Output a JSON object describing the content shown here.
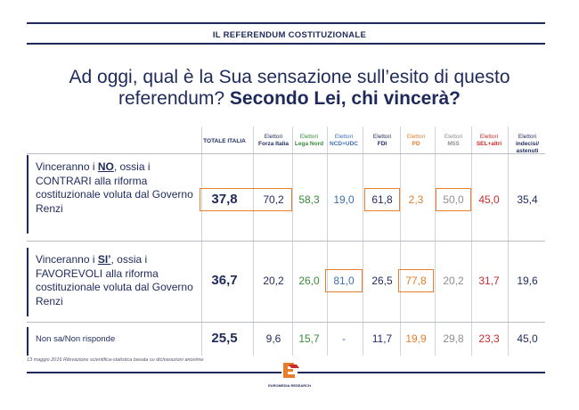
{
  "header": {
    "title": "IL REFERENDUM COSTITUZIONALE"
  },
  "question": {
    "part1": "Ad oggi, qual è la Sua sensazione sull’esito di questo",
    "part2": "referendum? ",
    "bold": "Secondo Lei, chi vincerà?"
  },
  "colors": {
    "navy": "#1f2a5c",
    "green": "#3a8a3a",
    "blue": "#3f6fb5",
    "orange": "#e67e2c",
    "gray": "#8f8f8f",
    "red": "#cc2a2a",
    "highlight_border": "#e67e2c"
  },
  "chart_data": {
    "type": "table",
    "title": "Ad oggi, qual è la Sua sensazione sull’esito di questo referendum? Secondo Lei, chi vincerà?",
    "columns": [
      {
        "l1": "TOTALE ITALIA",
        "l2": ""
      },
      {
        "l1": "Elettori",
        "l2": "Forza Italia"
      },
      {
        "l1": "Elettori",
        "l2": "Lega Nord"
      },
      {
        "l1": "Elettori",
        "l2": "NCD+UDC"
      },
      {
        "l1": "Elettori",
        "l2": "FDI"
      },
      {
        "l1": "Elettori",
        "l2": "PD"
      },
      {
        "l1": "Elettori",
        "l2": "M5S"
      },
      {
        "l1": "Elettori",
        "l2": "SEL+altri"
      },
      {
        "l1": "Elettori",
        "l2": "indecisi/ astenuti"
      }
    ],
    "rows": [
      {
        "label_pre": "Vinceranno i ",
        "label_key": "NO",
        "label_post": ", ossia i CONTRARI alla riforma costituzionale voluta dal Governo Renzi",
        "values": [
          "37,8",
          "70,2",
          "58,3",
          "19,0",
          "61,8",
          "2,3",
          "50,0",
          "45,0",
          "35,4"
        ],
        "highlighted": [
          true,
          true,
          false,
          false,
          true,
          false,
          true,
          false,
          false
        ]
      },
      {
        "label_pre": "Vinceranno i ",
        "label_key": "SI’",
        "label_post": ", ossia i FAVOREVOLI alla riforma costituzionale voluta dal Governo Renzi",
        "values": [
          "36,7",
          "20,2",
          "26,0",
          "81,0",
          "26,5",
          "77,8",
          "20,2",
          "31,7",
          "19,6"
        ],
        "highlighted": [
          false,
          false,
          false,
          true,
          false,
          true,
          false,
          false,
          false
        ]
      },
      {
        "label_pre": "Non sa/Non risponde",
        "label_key": "",
        "label_post": "",
        "values": [
          "25,5",
          "9,6",
          "15,7",
          "-",
          "11,7",
          "19,9",
          "29,8",
          "23,3",
          "45,0"
        ],
        "highlighted": [
          false,
          false,
          false,
          false,
          false,
          false,
          false,
          false,
          false
        ]
      }
    ]
  },
  "footnote": "13 maggio 2016 Rilevazione scientifica-statistica basata su dichiarazioni anonime",
  "logo": {
    "text": "EUROMEDIA RESEARCH",
    "icon": "euromedia-logo-icon"
  }
}
